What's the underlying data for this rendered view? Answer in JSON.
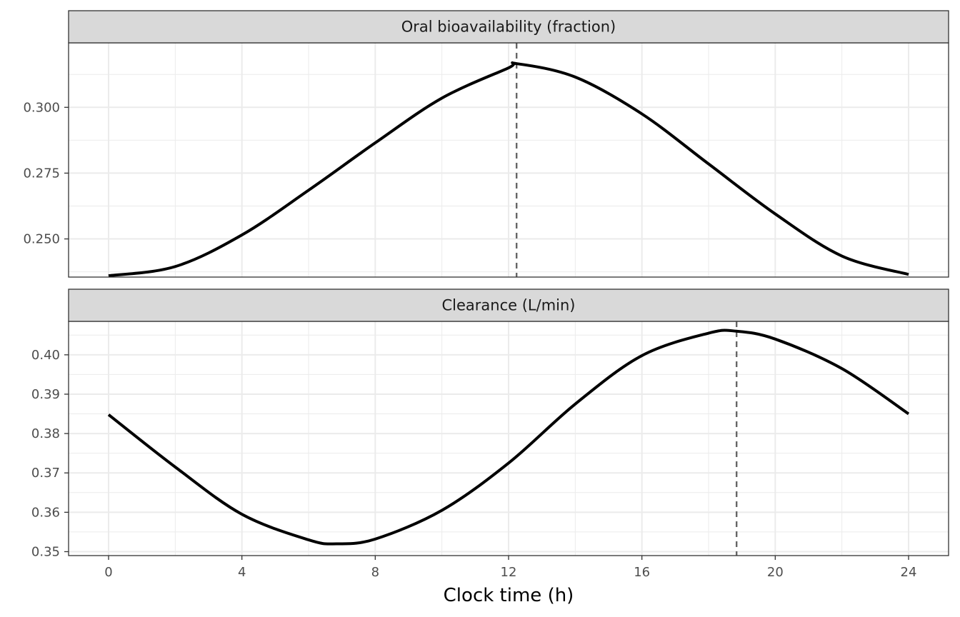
{
  "chart_data": {
    "type": "line",
    "layout": "faceted-vertical",
    "xlabel": "Clock time (h)",
    "xlim": [
      -1.2,
      25.2
    ],
    "x_ticks": [
      0,
      4,
      8,
      12,
      16,
      20,
      24
    ],
    "x_tick_labels": [
      "0",
      "4",
      "8",
      "12",
      "16",
      "20",
      "24"
    ],
    "grid": true,
    "line_color": "#000000",
    "reference_line_style": "dashed",
    "reference_line_color": "#666666",
    "panels": [
      {
        "title": "Oral bioavailability (fraction)",
        "ylim": [
          0.2355,
          0.3245
        ],
        "y_ticks": [
          0.25,
          0.275,
          0.3
        ],
        "y_tick_labels": [
          "0.250",
          "0.275",
          "0.300"
        ],
        "x": [
          0,
          2,
          4,
          6,
          8,
          10,
          12,
          12.24,
          14,
          16,
          18,
          20,
          22,
          24
        ],
        "y": [
          0.236,
          0.2395,
          0.2515,
          0.2685,
          0.2865,
          0.3035,
          0.315,
          0.3166,
          0.3115,
          0.2975,
          0.2785,
          0.2595,
          0.2435,
          0.2365
        ],
        "reference_x": 12.24
      },
      {
        "title": "Clearance (L/min)",
        "ylim": [
          0.349,
          0.4085
        ],
        "y_ticks": [
          0.35,
          0.36,
          0.37,
          0.38,
          0.39,
          0.4
        ],
        "y_tick_labels": [
          "0.35",
          "0.36",
          "0.37",
          "0.38",
          "0.39",
          "0.40"
        ],
        "x": [
          0,
          2,
          4,
          6,
          6.84,
          8,
          10,
          12,
          14,
          16,
          18,
          18.84,
          20,
          22,
          24
        ],
        "y": [
          0.3848,
          0.3715,
          0.3595,
          0.353,
          0.352,
          0.3532,
          0.3605,
          0.3725,
          0.3875,
          0.3998,
          0.4055,
          0.406,
          0.404,
          0.3965,
          0.385
        ],
        "reference_x": 18.84
      }
    ]
  }
}
